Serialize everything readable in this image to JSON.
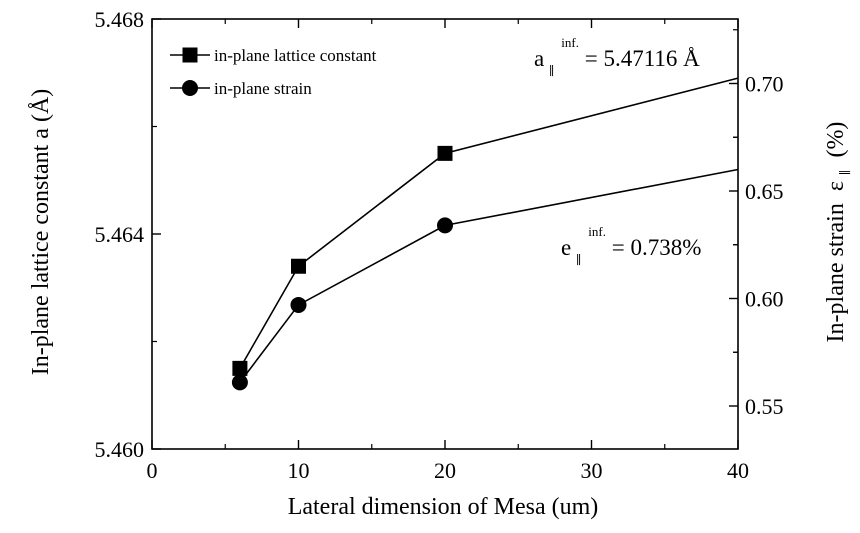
{
  "chart_data": {
    "type": "line",
    "xlabel": "Lateral dimension of Mesa (um)",
    "ylabel_left": "In-plane lattice constant a (Å)",
    "ylabel_right": "In-plane strain",
    "ylabel_right_unit": "(%)",
    "ylabel_right_symbol": "ε",
    "ylabel_right_sub": "∥",
    "xlim": [
      0,
      40
    ],
    "ylim_left": [
      5.46,
      5.468
    ],
    "ylim_right": [
      0.53,
      0.73
    ],
    "x_ticks": [
      "0",
      "10",
      "20",
      "30",
      "40"
    ],
    "y_left_ticks": [
      "5.460",
      "5.464",
      "5.468"
    ],
    "y_right_ticks": [
      "0.55",
      "0.60",
      "0.65",
      "0.70"
    ],
    "grid": false,
    "legend_position": "top-left",
    "series": [
      {
        "name": "in-plane lattice constant",
        "axis": "left",
        "marker": "square",
        "x": [
          6,
          10,
          20
        ],
        "y": [
          5.4615,
          5.4634,
          5.4655
        ],
        "extension": {
          "to_x": 40,
          "to_y": 5.4669
        }
      },
      {
        "name": "in-plane strain",
        "axis": "right",
        "marker": "circle",
        "x": [
          6,
          10,
          20
        ],
        "y": [
          0.561,
          0.597,
          0.634
        ],
        "extension": {
          "to_x": 40,
          "to_y": 0.66
        }
      }
    ],
    "annotations": [
      {
        "base": "a",
        "sub": "∥",
        "sup": "inf.",
        "text": " = 5.47116 Å"
      },
      {
        "base": "e",
        "sub": "∥",
        "sup": "inf.",
        "text": " = 0.738%"
      }
    ]
  }
}
